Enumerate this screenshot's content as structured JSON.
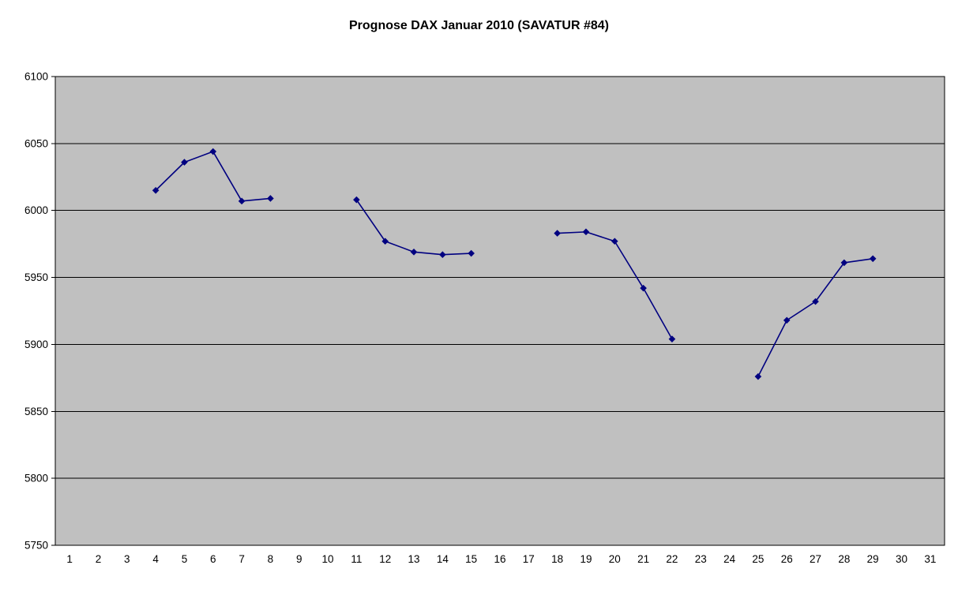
{
  "chart_data": {
    "type": "line",
    "title": "Prognose DAX Januar 2010 (SAVATUR #84)",
    "xlabel": "",
    "ylabel": "",
    "x": [
      1,
      2,
      3,
      4,
      5,
      6,
      7,
      8,
      9,
      10,
      11,
      12,
      13,
      14,
      15,
      16,
      17,
      18,
      19,
      20,
      21,
      22,
      23,
      24,
      25,
      26,
      27,
      28,
      29,
      30,
      31
    ],
    "series": [
      {
        "name": "Prognose DAX",
        "values": [
          null,
          null,
          null,
          6015,
          6036,
          6044,
          6007,
          6009,
          null,
          null,
          6008,
          5977,
          5969,
          5967,
          5968,
          null,
          null,
          5983,
          5984,
          5977,
          5942,
          5904,
          null,
          null,
          5876,
          5918,
          5932,
          5961,
          5964,
          null,
          null
        ],
        "color": "#000080",
        "marker": "diamond"
      }
    ],
    "ylim": [
      5750,
      6100
    ],
    "ytick_step": 50,
    "yticks": [
      5750,
      5800,
      5850,
      5900,
      5950,
      6000,
      6050,
      6100
    ],
    "grid": "horizontal",
    "legend": "none",
    "plot_background": "#c0c0c0",
    "gridline_color": "#000000",
    "border_color": "#000000"
  },
  "layout_colors": {
    "page_background": "#ffffff",
    "text": "#000000"
  }
}
